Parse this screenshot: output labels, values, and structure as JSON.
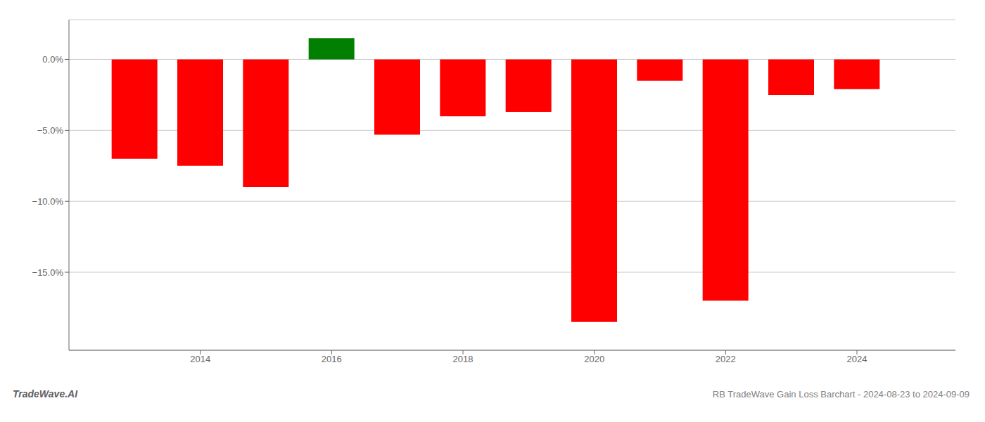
{
  "chart_data": {
    "type": "bar",
    "x": [
      2013,
      2014,
      2015,
      2016,
      2017,
      2018,
      2019,
      2020,
      2021,
      2022,
      2023,
      2024
    ],
    "values": [
      -7.0,
      -7.5,
      -9.0,
      1.5,
      -5.3,
      -4.0,
      -3.7,
      -18.5,
      -1.5,
      -17.0,
      -2.5,
      -2.1
    ],
    "colors": [
      "#ff0000",
      "#ff0000",
      "#ff0000",
      "#007f00",
      "#ff0000",
      "#ff0000",
      "#ff0000",
      "#ff0000",
      "#ff0000",
      "#ff0000",
      "#ff0000",
      "#ff0000"
    ],
    "xlim": [
      2012.0,
      2025.5
    ],
    "xticks": [
      2014,
      2016,
      2018,
      2020,
      2022,
      2024
    ],
    "ylim": [
      -20.5,
      2.8
    ],
    "yticks": [
      {
        "value": 0.0,
        "label": "0.0%"
      },
      {
        "value": -5.0,
        "label": "−5.0%"
      },
      {
        "value": -10.0,
        "label": "−10.0%"
      },
      {
        "value": -15.0,
        "label": "−15.0%"
      }
    ],
    "grid": true,
    "annotations": [
      "TradeWave.AI",
      "RB TradeWave Gain Loss Barchart - 2024-08-23 to 2024-09-09"
    ]
  }
}
